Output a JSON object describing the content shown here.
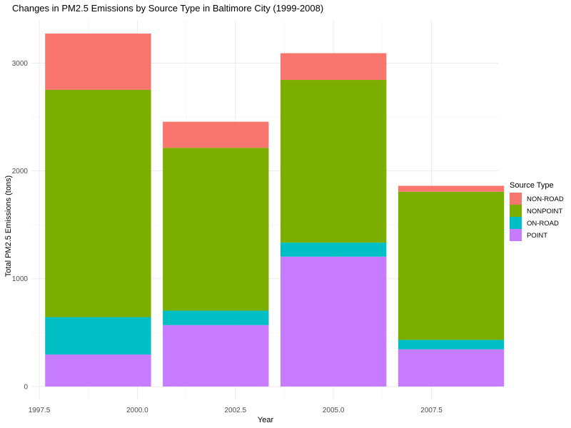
{
  "chart_data": {
    "type": "bar",
    "stacked": true,
    "title": "Changes in PM2.5 Emissions by Source Type in Baltimore City (1999-2008)",
    "xlabel": "Year",
    "ylabel": "Total PM2.5 Emissions (tons)",
    "x": [
      1999,
      2002,
      2005,
      2008
    ],
    "xlim": [
      1997.3,
      2009.2
    ],
    "x_ticks": [
      1997.5,
      2000.0,
      2002.5,
      2005.0,
      2007.5
    ],
    "x_tick_labels": [
      "1997.5",
      "2000.0",
      "2002.5",
      "2005.0",
      "2007.5"
    ],
    "ylim": [
      -120,
      3400
    ],
    "y_ticks": [
      0,
      1000,
      2000,
      3000
    ],
    "y_tick_labels": [
      "0",
      "1000",
      "2000",
      "3000"
    ],
    "grid": true,
    "legend_title": "Source Type",
    "legend_position": "right",
    "series": [
      {
        "name": "POINT",
        "color": "#C77CFF",
        "values": [
          297,
          570,
          1205,
          345
        ]
      },
      {
        "name": "ON-ROAD",
        "color": "#00BFC4",
        "values": [
          347,
          134,
          130,
          88
        ]
      },
      {
        "name": "NONPOINT",
        "color": "#7CAE00",
        "values": [
          2108,
          1510,
          1509,
          1374
        ]
      },
      {
        "name": "NON-ROAD",
        "color": "#F8766D",
        "values": [
          522,
          242,
          248,
          55
        ]
      }
    ],
    "legend_order": [
      "NON-ROAD",
      "NONPOINT",
      "ON-ROAD",
      "POINT"
    ]
  }
}
